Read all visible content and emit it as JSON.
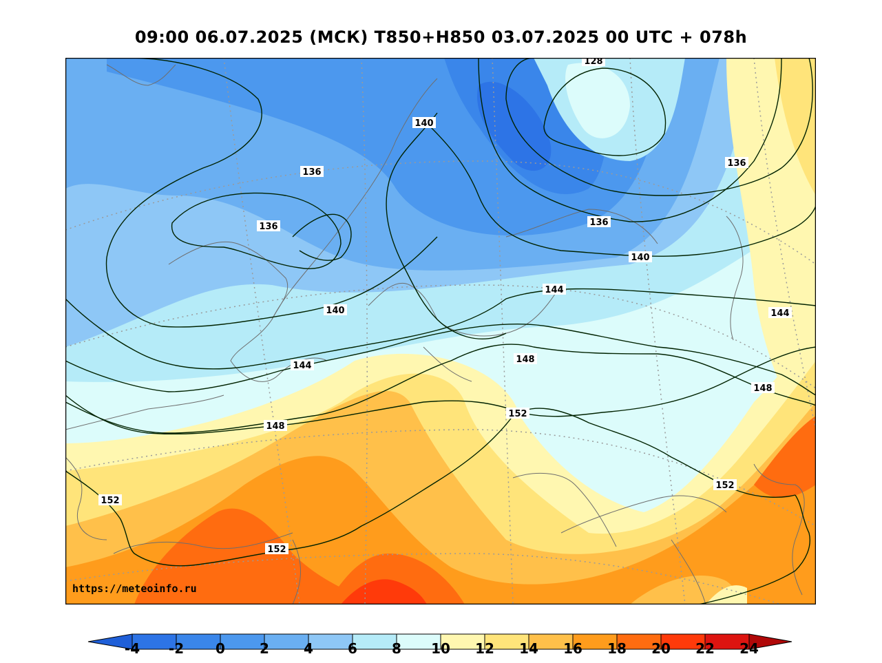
{
  "title": "09:00 06.07.2025 (МСК) T850+H850 03.07.2025 00 UTC + 078h",
  "watermark": "https://meteoinfo.ru",
  "colorbar": {
    "ticks": [
      "-4",
      "-2",
      "0",
      "2",
      "4",
      "6",
      "8",
      "10",
      "12",
      "14",
      "16",
      "18",
      "20",
      "22",
      "24"
    ],
    "colors": [
      "#2d74e6",
      "#3a86ea",
      "#4c98ee",
      "#6aaff2",
      "#8ec7f6",
      "#b5ebf8",
      "#dcfcfb",
      "#fff7b0",
      "#ffe47a",
      "#ffc04a",
      "#ff9c1c",
      "#ff6c10",
      "#ff3a0a",
      "#dd1410"
    ],
    "under_color": "#1f5fd8",
    "over_color": "#b00808"
  },
  "contour_labels": [
    {
      "text": "128"
    },
    {
      "text": "140"
    },
    {
      "text": "136"
    },
    {
      "text": "136"
    },
    {
      "text": "136"
    },
    {
      "text": "136"
    },
    {
      "text": "140"
    },
    {
      "text": "140"
    },
    {
      "text": "144"
    },
    {
      "text": "144"
    },
    {
      "text": "144"
    },
    {
      "text": "148"
    },
    {
      "text": "148"
    },
    {
      "text": "148"
    },
    {
      "text": "152"
    },
    {
      "text": "152"
    },
    {
      "text": "152"
    },
    {
      "text": "152"
    }
  ]
}
